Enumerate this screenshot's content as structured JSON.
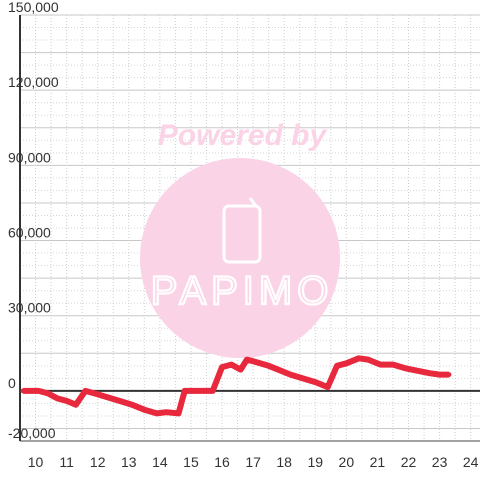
{
  "chart_data": {
    "type": "line",
    "title": "",
    "xlabel": "",
    "ylabel": "",
    "xlim": [
      9.5,
      24.3
    ],
    "ylim": [
      -20000,
      150000
    ],
    "x_ticks": [
      "10",
      "11",
      "12",
      "13",
      "14",
      "15",
      "16",
      "17",
      "18",
      "19",
      "20",
      "21",
      "22",
      "23",
      "24"
    ],
    "y_ticks": [
      "150,000",
      "120,000",
      "90,000",
      "60,000",
      "30,000",
      "0",
      "-20,000"
    ],
    "y_tick_values": [
      150000,
      120000,
      90000,
      60000,
      30000,
      0,
      -20000
    ],
    "grid": true,
    "series": [
      {
        "color": "#e8283c",
        "x": [
          9.6,
          10.1,
          10.4,
          10.7,
          11.0,
          11.3,
          11.6,
          11.9,
          12.3,
          12.7,
          13.1,
          13.5,
          13.9,
          14.2,
          14.6,
          14.8,
          15.3,
          15.7,
          16.0,
          16.3,
          16.6,
          16.8,
          17.1,
          17.5,
          17.9,
          18.2,
          18.6,
          19.0,
          19.4,
          19.7,
          20.0,
          20.4,
          20.7,
          21.1,
          21.5,
          21.9,
          22.3,
          22.7,
          23.0,
          23.3
        ],
        "y": [
          0,
          0,
          -1000,
          -3000,
          -4000,
          -5500,
          0,
          -1000,
          -2500,
          -4000,
          -5500,
          -7500,
          -9000,
          -8500,
          -9000,
          0,
          0,
          0,
          9500,
          10500,
          8500,
          12500,
          11500,
          10000,
          8000,
          6500,
          5000,
          3500,
          1500,
          10000,
          11000,
          13000,
          12500,
          10500,
          10500,
          9000,
          8000,
          7000,
          6500,
          6500
        ]
      }
    ]
  },
  "watermark": {
    "powered_by": "Powered by",
    "brand": "PAPIMO",
    "circle_color": "#fbd3e6",
    "icon": "phone-icon"
  }
}
